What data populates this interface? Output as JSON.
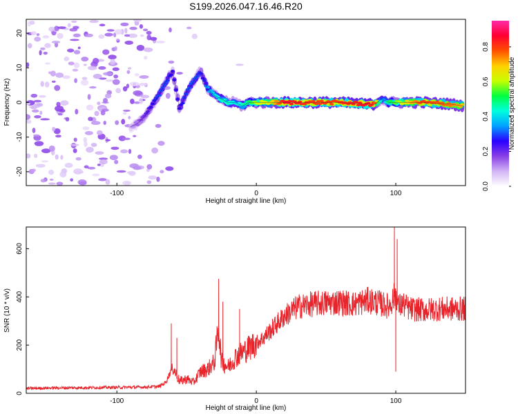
{
  "title": "S199.2026.047.16.46.R20",
  "chart_data": [
    {
      "type": "heatmap",
      "name": "spectrogram",
      "xlabel": "Height of straight line (km)",
      "ylabel": "Frequency (Hz)",
      "xlim": [
        -165,
        150
      ],
      "ylim": [
        -24,
        24
      ],
      "xticks": [
        -100,
        0,
        100
      ],
      "yticks": [
        -20,
        -10,
        0,
        10,
        20
      ],
      "colorbar": {
        "label": "Normalized spectral amplitude",
        "range": [
          0,
          0.95
        ],
        "ticks": [
          0,
          0.2,
          0.4,
          0.6,
          0.8
        ],
        "colors": [
          "#ffffff",
          "#d2b4f5",
          "#8a40e6",
          "#2a00ff",
          "#00a0ff",
          "#00ffe0",
          "#00ff40",
          "#c8ff00",
          "#ffd000",
          "#ff5000",
          "#ff0030",
          "#ff2aa8"
        ]
      },
      "ridge": {
        "x": [
          -90,
          -85,
          -80,
          -75,
          -70,
          -65,
          -60,
          -55,
          -50,
          -45,
          -42,
          -40,
          -38,
          -35,
          -30,
          -25,
          -20,
          -15,
          -10,
          -5,
          0,
          10,
          20,
          40,
          60,
          80,
          85,
          90,
          95,
          100,
          110,
          120,
          140,
          148
        ],
        "freq_hz": [
          -7,
          -6,
          -4,
          -1,
          2,
          6,
          9,
          -2,
          3,
          6,
          8,
          9,
          7,
          4,
          2,
          1,
          0,
          0,
          -1,
          0,
          0,
          0,
          0,
          0,
          0,
          -0.5,
          -0.5,
          1,
          0,
          0,
          0,
          0,
          -0.5,
          -1
        ],
        "amplitude": [
          0.1,
          0.15,
          0.2,
          0.25,
          0.3,
          0.3,
          0.25,
          0.25,
          0.3,
          0.3,
          0.3,
          0.28,
          0.25,
          0.35,
          0.4,
          0.45,
          0.45,
          0.4,
          0.45,
          0.5,
          0.6,
          0.65,
          0.85,
          0.8,
          0.8,
          0.85,
          0.8,
          0.3,
          0.5,
          0.55,
          0.7,
          0.8,
          0.75,
          0.7
        ]
      }
    },
    {
      "type": "line",
      "name": "snr",
      "xlabel": "Height of straight line (km)",
      "ylabel": "SNR (10 * v/v)",
      "xlim": [
        -165,
        150
      ],
      "ylim": [
        0,
        690
      ],
      "xticks": [
        -100,
        0,
        100
      ],
      "yticks": [
        0,
        200,
        400,
        600
      ],
      "color": "#e8232a",
      "x": [
        -165,
        -150,
        -130,
        -110,
        -90,
        -80,
        -70,
        -65,
        -60,
        -55,
        -50,
        -45,
        -40,
        -35,
        -30,
        -27,
        -25,
        -20,
        -15,
        -10,
        -5,
        0,
        5,
        10,
        15,
        20,
        25,
        30,
        40,
        50,
        60,
        70,
        80,
        85,
        90,
        95,
        98,
        100,
        102,
        105,
        110,
        120,
        130,
        140,
        150
      ],
      "y": [
        20,
        22,
        23,
        24,
        25,
        26,
        28,
        45,
        110,
        50,
        60,
        45,
        90,
        100,
        130,
        280,
        130,
        110,
        150,
        170,
        190,
        210,
        230,
        260,
        290,
        320,
        340,
        360,
        370,
        375,
        378,
        370,
        385,
        380,
        370,
        360,
        390,
        420,
        360,
        370,
        350,
        345,
        350,
        350,
        350
      ],
      "spikes": [
        {
          "x": -61,
          "y": 290
        },
        {
          "x": -57,
          "y": 230
        },
        {
          "x": -27,
          "y": 475
        },
        {
          "x": -24,
          "y": 380
        },
        {
          "x": -12,
          "y": 350
        },
        {
          "x": 99,
          "y": 690
        },
        {
          "x": 100,
          "y": 90
        },
        {
          "x": 101,
          "y": 640
        }
      ]
    }
  ]
}
